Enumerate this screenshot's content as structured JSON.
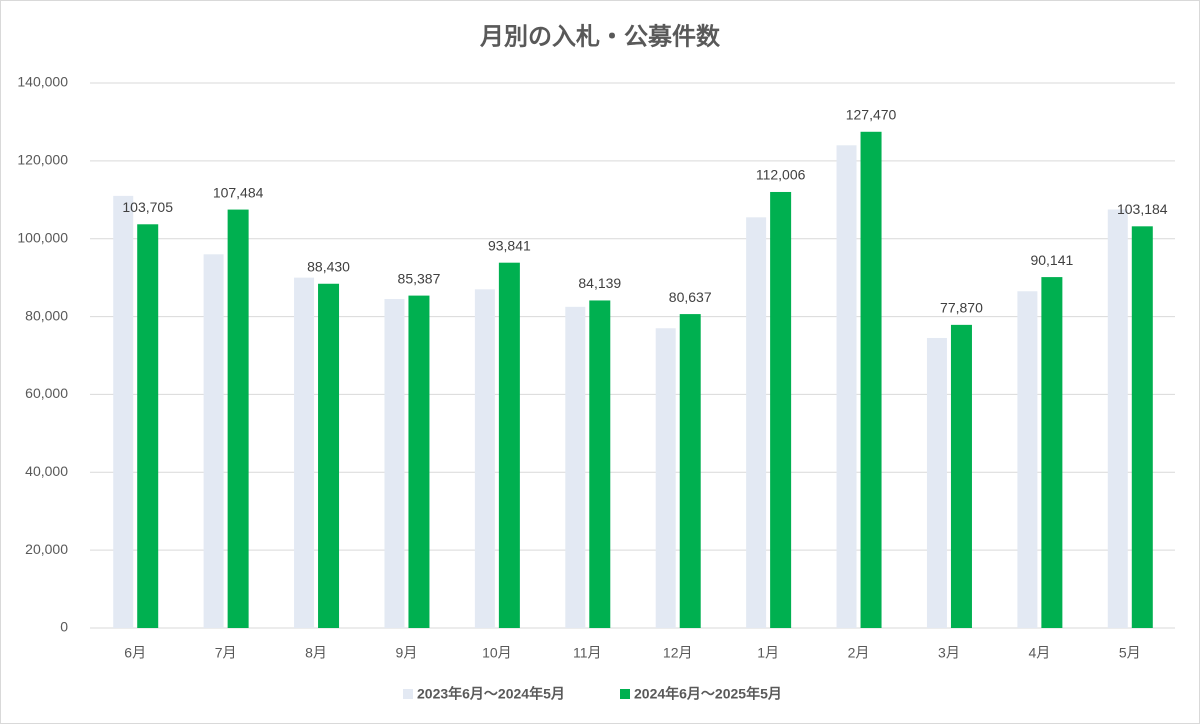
{
  "chart_data": {
    "type": "bar",
    "title": "月別の入札・公募件数",
    "categories": [
      "6月",
      "7月",
      "8月",
      "9月",
      "10月",
      "11月",
      "12月",
      "1月",
      "2月",
      "3月",
      "4月",
      "5月"
    ],
    "series": [
      {
        "name": "2023年6月～2024年5月",
        "color": "#e3e9f3",
        "values": [
          111000,
          96000,
          90000,
          84500,
          87000,
          82500,
          77000,
          105500,
          124000,
          74500,
          86500,
          107500
        ]
      },
      {
        "name": "2024年6月～2025年5月",
        "color": "#00b050",
        "values": [
          103705,
          107484,
          88430,
          85387,
          93841,
          84139,
          80637,
          112006,
          127470,
          77870,
          90141,
          103184
        ],
        "value_labels": [
          "103,705",
          "107,484",
          "88,430",
          "85,387",
          "93,841",
          "84,139",
          "80,637",
          "112,006",
          "127,470",
          "77,870",
          "90,141",
          "103,184"
        ]
      }
    ],
    "ylim": [
      0,
      140000
    ],
    "yticks": [
      0,
      {
        "value": 20000,
        "label": "20,000"
      },
      {
        "value": 40000,
        "label": "40,000"
      },
      {
        "value": 60000,
        "label": "60,000"
      },
      {
        "value": 80000,
        "label": "80,000"
      },
      {
        "value": 100000,
        "label": "100,000"
      },
      {
        "value": 120000,
        "label": "120,000"
      },
      {
        "value": 140000,
        "label": "140,000"
      }
    ],
    "grid": true,
    "legend": "bottom"
  }
}
